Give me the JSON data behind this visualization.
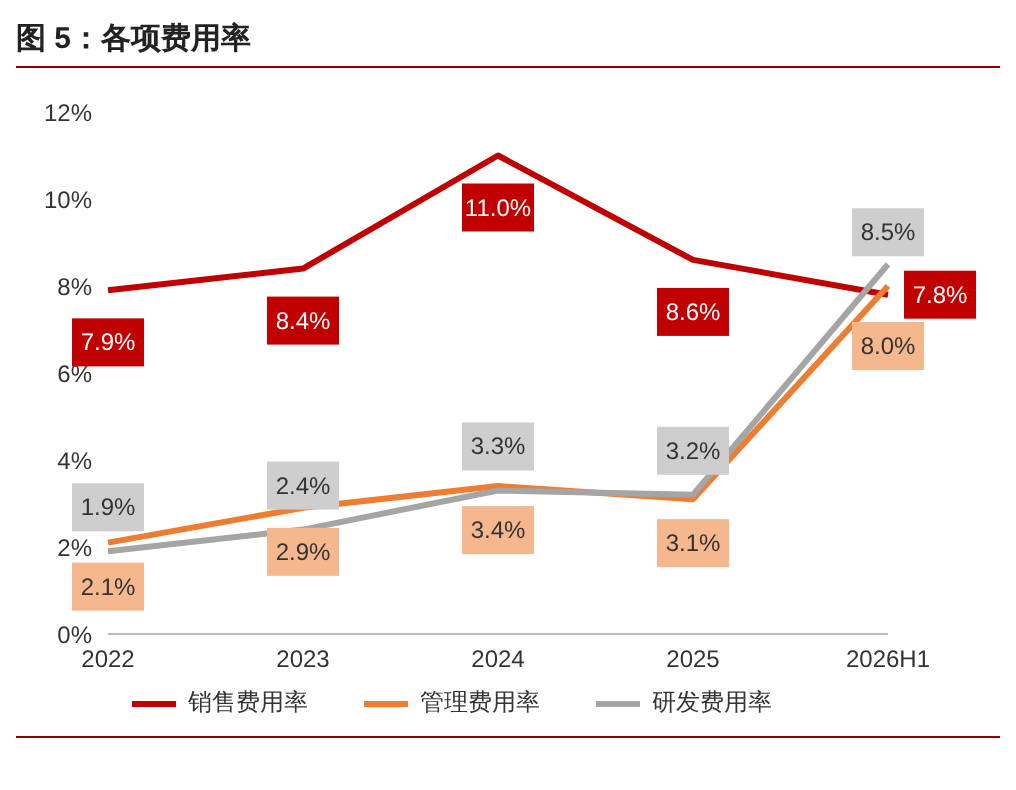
{
  "chart_data": {
    "type": "line",
    "title": "图 5：各项费用率",
    "categories": [
      "2022",
      "2023",
      "2024",
      "2025",
      "2026H1"
    ],
    "series": [
      {
        "name": "销售费用率",
        "color": "#c00000",
        "values": [
          7.9,
          8.4,
          11.0,
          8.6,
          7.8
        ],
        "value_labels": [
          "7.9%",
          "8.4%",
          "11.0%",
          "8.6%",
          "7.8%"
        ]
      },
      {
        "name": "管理费用率",
        "color": "#ed7d31",
        "values": [
          2.1,
          2.9,
          3.4,
          3.1,
          8.0
        ],
        "value_labels": [
          "2.1%",
          "2.9%",
          "3.4%",
          "3.1%",
          "8.0%"
        ]
      },
      {
        "name": "研发费用率",
        "color": "#a5a5a5",
        "values": [
          1.9,
          2.4,
          3.3,
          3.2,
          8.5
        ],
        "value_labels": [
          "1.9%",
          "2.4%",
          "3.3%",
          "3.2%",
          "8.5%"
        ]
      }
    ],
    "ylim": [
      0,
      12
    ],
    "yticks": [
      {
        "value": 0,
        "label": "0%"
      },
      {
        "value": 2,
        "label": "2%"
      },
      {
        "value": 4,
        "label": "4%"
      },
      {
        "value": 6,
        "label": "6%"
      },
      {
        "value": 8,
        "label": "8%"
      },
      {
        "value": 10,
        "label": "10%"
      },
      {
        "value": 12,
        "label": "12%"
      }
    ],
    "grid": false,
    "legend": "bottom",
    "marker": "none",
    "line_style": "solid"
  }
}
